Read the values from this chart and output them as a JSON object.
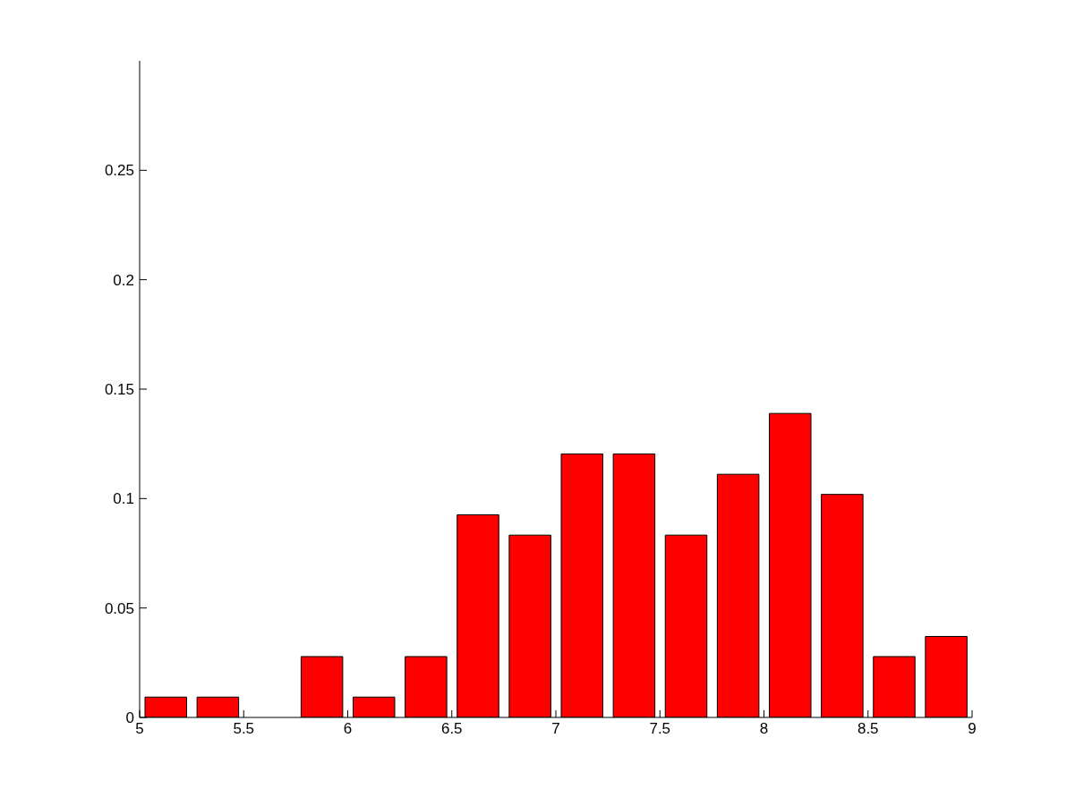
{
  "chart_data": {
    "type": "histogram",
    "bins": [
      5,
      5.25,
      5.5,
      5.75,
      6,
      6.25,
      6.5,
      6.75,
      7,
      7.25,
      7.5,
      7.75,
      8,
      8.25,
      8.5,
      8.75,
      9
    ],
    "values": [
      0.0093,
      0.0093,
      0,
      0.0278,
      0.0093,
      0.0278,
      0.0926,
      0.0833,
      0.1204,
      0.1204,
      0.0833,
      0.1111,
      0.1389,
      0.1019,
      0.0278,
      0.037
    ],
    "color": "#ff0000",
    "xlim": [
      5,
      9
    ],
    "xticks": [
      5,
      5.5,
      6,
      6.5,
      7,
      7.5,
      8,
      8.5,
      9
    ],
    "ylim": [
      0,
      0.3
    ],
    "yticks": [
      0,
      0.05,
      0.1,
      0.15,
      0.2,
      0.25
    ],
    "grid": false
  }
}
